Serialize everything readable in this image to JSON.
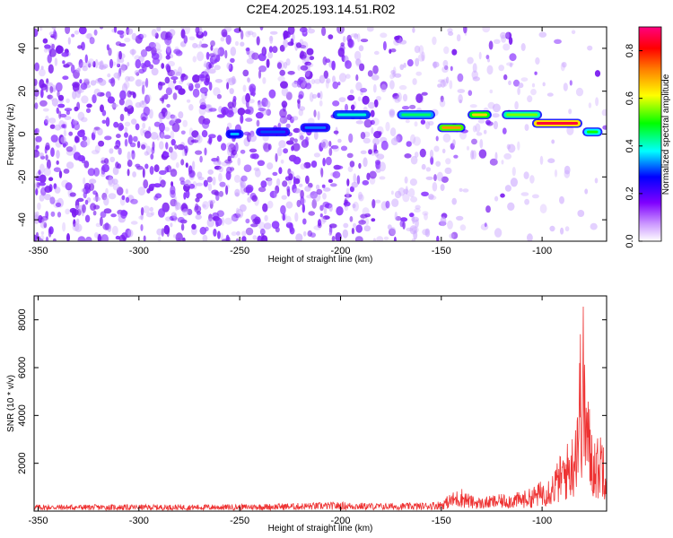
{
  "title": "C2E4.2025.193.14.51.R02",
  "colors": {
    "snr_line": "#ee3333",
    "axis": "#000000"
  },
  "chart_data": [
    {
      "type": "heatmap",
      "xlabel": "Height of straight line (km)",
      "ylabel": "Frequency (Hz)",
      "xlim": [
        -352,
        -68
      ],
      "ylim": [
        -50,
        50
      ],
      "x_ticks": [
        "-350",
        "-300",
        "-250",
        "-200",
        "-150",
        "-100"
      ],
      "x_tick_values": [
        -350,
        -300,
        -250,
        -200,
        -150,
        -100
      ],
      "y_ticks": [
        "40",
        "20",
        "0",
        "-20",
        "-40"
      ],
      "y_tick_values": [
        40,
        20,
        0,
        -20,
        -40
      ],
      "colorbar": {
        "label": "Normalized spectral amplitude",
        "range": [
          0,
          0.9
        ],
        "ticks": [
          "0.0",
          "0.2",
          "0.4",
          "0.6",
          "0.8"
        ],
        "tick_values": [
          0.0,
          0.2,
          0.4,
          0.6,
          0.8
        ],
        "colormap": "rainbow"
      },
      "features": [
        {
          "x_range": [
            -257,
            -248
          ],
          "freq": 0,
          "amplitude": 0.35
        },
        {
          "x_range": [
            -242,
            -225
          ],
          "freq": 1,
          "amplitude": 0.3
        },
        {
          "x_range": [
            -220,
            -205
          ],
          "freq": 3,
          "amplitude": 0.32
        },
        {
          "x_range": [
            -204,
            -185
          ],
          "freq": 9,
          "amplitude": 0.4
        },
        {
          "x_range": [
            -172,
            -153
          ],
          "freq": 9,
          "amplitude": 0.45
        },
        {
          "x_range": [
            -152,
            -138
          ],
          "freq": 3,
          "amplitude": 0.7
        },
        {
          "x_range": [
            -137,
            -125
          ],
          "freq": 9,
          "amplitude": 0.65
        },
        {
          "x_range": [
            -120,
            -100
          ],
          "freq": 9,
          "amplitude": 0.55
        },
        {
          "x_range": [
            -105,
            -80
          ],
          "freq": 5,
          "amplitude": 0.85
        },
        {
          "x_range": [
            -80,
            -70
          ],
          "freq": 1,
          "amplitude": 0.5
        }
      ]
    },
    {
      "type": "line",
      "xlabel": "Height of straight line (km)",
      "ylabel": "SNR (10 * v/v)",
      "xlim": [
        -352,
        -68
      ],
      "ylim": [
        0,
        9000
      ],
      "x_ticks": [
        "-350",
        "-300",
        "-250",
        "-200",
        "-150",
        "-100"
      ],
      "x_tick_values": [
        -350,
        -300,
        -250,
        -200,
        -150,
        -100
      ],
      "y_ticks": [
        "8000",
        "6000",
        "4000",
        "2000"
      ],
      "y_tick_values": [
        8000,
        6000,
        4000,
        2000
      ],
      "series": [
        {
          "x": [
            -350,
            -300,
            -250,
            -200,
            -180,
            -160,
            -150,
            -145,
            -140,
            -135,
            -130,
            -125,
            -120,
            -115,
            -110,
            -105,
            -100,
            -95,
            -90,
            -85,
            -82,
            -80,
            -78,
            -75,
            -72,
            -70,
            -68
          ],
          "y": [
            250,
            250,
            260,
            350,
            300,
            320,
            400,
            700,
            900,
            600,
            500,
            600,
            650,
            700,
            750,
            900,
            1200,
            1500,
            2300,
            3000,
            5500,
            8800,
            5000,
            3200,
            2800,
            3500,
            2600
          ]
        }
      ]
    }
  ]
}
